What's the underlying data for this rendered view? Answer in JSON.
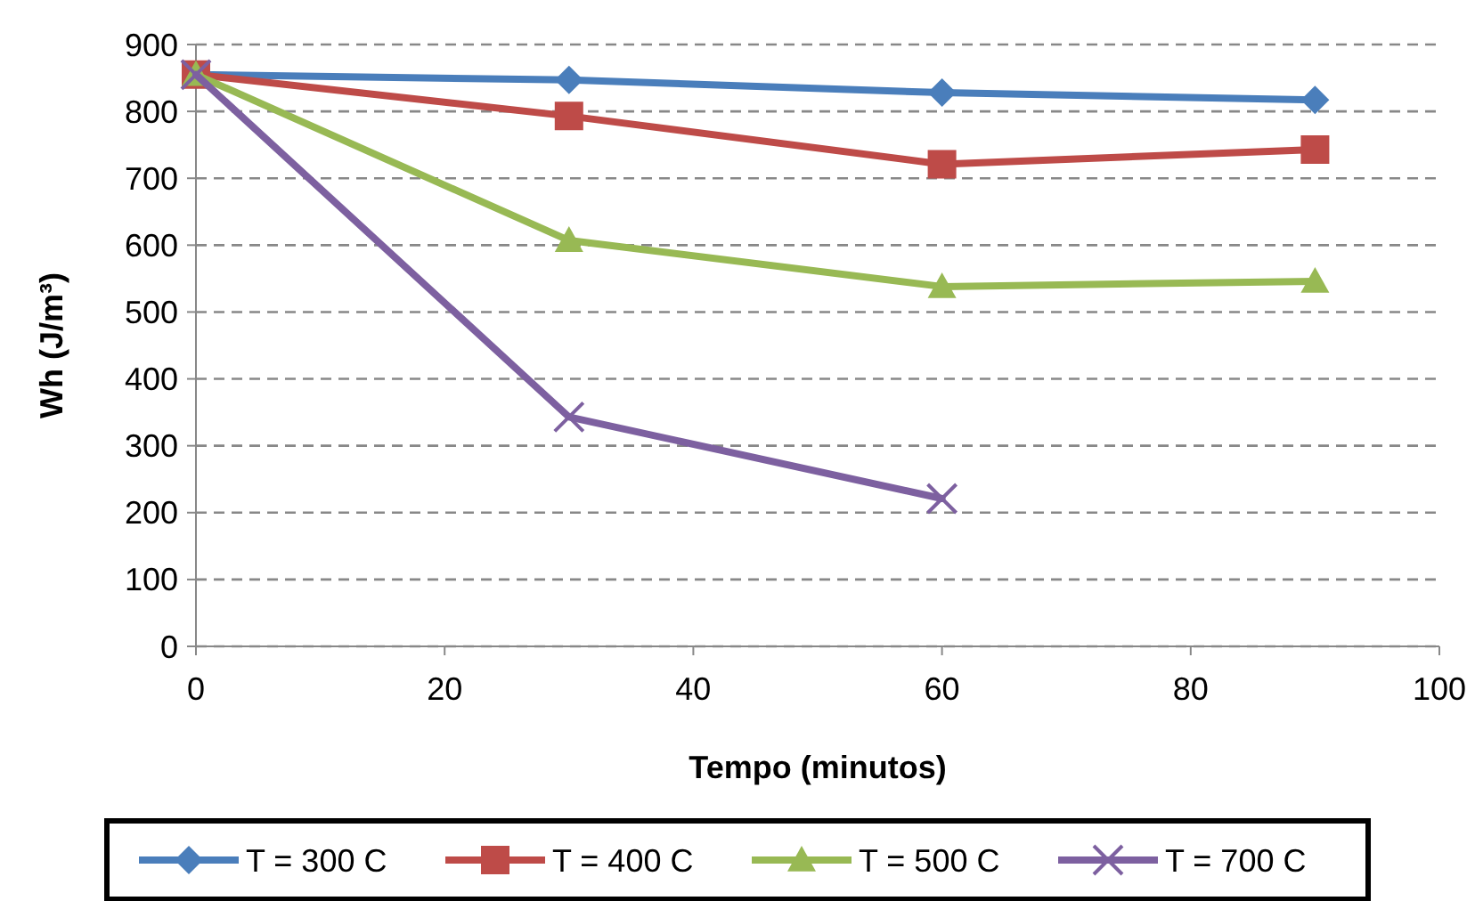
{
  "chart_data": {
    "type": "line",
    "xlabel": "Tempo (minutos)",
    "ylabel": "Wh (J/m³)",
    "xlim": [
      0,
      100
    ],
    "xticks": [
      0,
      20,
      40,
      60,
      80,
      100
    ],
    "ylim": [
      0,
      900
    ],
    "yticks": [
      0,
      100,
      200,
      300,
      400,
      500,
      600,
      700,
      800,
      900
    ],
    "grid": "y",
    "legend": "bottom",
    "series": [
      {
        "name": "T = 300 C",
        "color": "#4a7ebb",
        "marker": "diamond",
        "x": [
          0,
          30,
          60,
          90
        ],
        "values": [
          855,
          847,
          828,
          817
        ]
      },
      {
        "name": "T = 400 C",
        "color": "#be4b48",
        "marker": "square",
        "x": [
          0,
          30,
          60,
          90
        ],
        "values": [
          855,
          793,
          721,
          743
        ]
      },
      {
        "name": "T = 500 C",
        "color": "#98b954",
        "marker": "triangle",
        "x": [
          0,
          30,
          60,
          90
        ],
        "values": [
          855,
          607,
          538,
          546
        ]
      },
      {
        "name": "T = 700 C",
        "color": "#7d60a0",
        "marker": "cross",
        "x": [
          0,
          30,
          60
        ],
        "values": [
          855,
          343,
          221
        ]
      }
    ]
  }
}
